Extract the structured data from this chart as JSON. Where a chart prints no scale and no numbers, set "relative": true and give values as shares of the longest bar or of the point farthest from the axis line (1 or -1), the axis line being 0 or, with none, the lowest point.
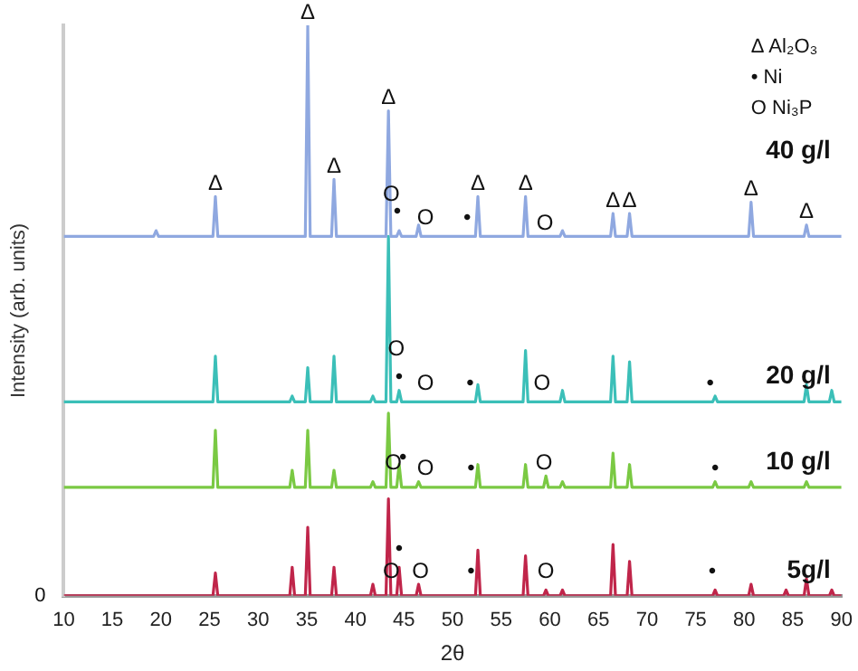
{
  "chart_data": {
    "type": "line",
    "relative": true,
    "xlabel": "2θ",
    "ylabel": "Intensity (arb. units)",
    "xlim": [
      10,
      90
    ],
    "xticks": [
      10,
      15,
      20,
      25,
      30,
      35,
      40,
      45,
      50,
      55,
      60,
      65,
      70,
      75,
      80,
      85,
      90
    ],
    "grid": false,
    "legend": false,
    "marker": "none",
    "line_style": "solid",
    "x": [
      10,
      15.45,
      15.7,
      15.95,
      19.25,
      19.5,
      19.75,
      25.35,
      25.6,
      25.85,
      33.25,
      33.5,
      33.75,
      34.85,
      35.1,
      35.35,
      37.55,
      37.8,
      38.05,
      41.55,
      41.8,
      42.05,
      43.15,
      43.4,
      43.65,
      44.25,
      44.5,
      44.75,
      46.25,
      46.5,
      46.75,
      52.35,
      52.6,
      52.85,
      57.25,
      57.5,
      57.75,
      59.35,
      59.6,
      59.85,
      61.05,
      61.3,
      61.55,
      66.25,
      66.5,
      66.75,
      67.95,
      68.2,
      68.45,
      76.75,
      77,
      77.25,
      80.45,
      80.7,
      80.95,
      84.05,
      84.3,
      84.55,
      86.15,
      86.4,
      86.65,
      88.75,
      89,
      89.25,
      90
    ],
    "series": [
      {
        "name": "40 g/l",
        "color": "#8fa8e0",
        "values": [
          0.63,
          0.63,
          0.63,
          0.63,
          0.63,
          0.64,
          0.63,
          0.63,
          0.7,
          0.63,
          0.63,
          0.63,
          0.63,
          0.63,
          1,
          0.63,
          0.63,
          0.73,
          0.63,
          0.63,
          0.63,
          0.63,
          0.63,
          0.85,
          0.63,
          0.63,
          0.64,
          0.63,
          0.63,
          0.65,
          0.63,
          0.63,
          0.7,
          0.63,
          0.63,
          0.7,
          0.63,
          0.63,
          0.63,
          0.63,
          0.63,
          0.64,
          0.63,
          0.63,
          0.67,
          0.63,
          0.63,
          0.67,
          0.63,
          0.63,
          0.63,
          0.63,
          0.63,
          0.69,
          0.63,
          0.63,
          0.63,
          0.63,
          0.63,
          0.65,
          0.63,
          0.63,
          0.63,
          0.63,
          0.63
        ]
      },
      {
        "name": "20 g/l",
        "color": "#3bbfb8",
        "values": [
          0.34,
          0.34,
          0.34,
          0.34,
          0.34,
          0.34,
          0.34,
          0.34,
          0.42,
          0.34,
          0.34,
          0.35,
          0.34,
          0.34,
          0.4,
          0.34,
          0.34,
          0.42,
          0.34,
          0.34,
          0.35,
          0.34,
          0.34,
          0.63,
          0.34,
          0.34,
          0.36,
          0.34,
          0.34,
          0.34,
          0.34,
          0.34,
          0.37,
          0.34,
          0.34,
          0.43,
          0.34,
          0.34,
          0.34,
          0.34,
          0.34,
          0.36,
          0.34,
          0.34,
          0.42,
          0.34,
          0.34,
          0.41,
          0.34,
          0.34,
          0.35,
          0.34,
          0.34,
          0.34,
          0.34,
          0.34,
          0.34,
          0.34,
          0.34,
          0.37,
          0.34,
          0.34,
          0.36,
          0.34,
          0.34
        ]
      },
      {
        "name": "10 g/l",
        "color": "#7ac943",
        "values": [
          0.19,
          0.19,
          0.19,
          0.19,
          0.19,
          0.19,
          0.19,
          0.19,
          0.29,
          0.19,
          0.19,
          0.22,
          0.19,
          0.19,
          0.29,
          0.19,
          0.19,
          0.22,
          0.19,
          0.19,
          0.2,
          0.19,
          0.19,
          0.32,
          0.19,
          0.19,
          0.23,
          0.19,
          0.19,
          0.2,
          0.19,
          0.19,
          0.23,
          0.19,
          0.19,
          0.23,
          0.19,
          0.19,
          0.21,
          0.19,
          0.19,
          0.2,
          0.19,
          0.19,
          0.25,
          0.19,
          0.19,
          0.23,
          0.19,
          0.19,
          0.2,
          0.19,
          0.19,
          0.2,
          0.19,
          0.19,
          0.19,
          0.19,
          0.19,
          0.2,
          0.19,
          0.19,
          0.19,
          0.19,
          0.19
        ]
      },
      {
        "name": "5g/l",
        "color": "#c0254a",
        "values": [
          0,
          0,
          0,
          0,
          0,
          0,
          0,
          0,
          0.04,
          0,
          0,
          0.05,
          0,
          0,
          0.12,
          0,
          0,
          0.05,
          0,
          0,
          0.02,
          0,
          0,
          0.17,
          0,
          0,
          0.05,
          0,
          0,
          0.02,
          0,
          0,
          0.08,
          0,
          0,
          0.07,
          0,
          0,
          0.01,
          0,
          0,
          0.01,
          0,
          0,
          0.09,
          0,
          0,
          0.06,
          0,
          0,
          0.01,
          0,
          0,
          0.02,
          0,
          0,
          0.01,
          0,
          0,
          0.03,
          0,
          0,
          0.01,
          0,
          0
        ]
      }
    ],
    "annotations": [
      "Δ Al₂O₃",
      "• Ni",
      "O Ni₃P",
      {
        "text": "0",
        "x": 10,
        "y": 0
      },
      {
        "text": "Δ",
        "x": 25.6,
        "y": 0.7
      },
      {
        "text": "Δ",
        "x": 35.1,
        "y": 1
      },
      {
        "text": "Δ",
        "x": 37.8,
        "y": 0.73
      },
      {
        "text": "Δ",
        "x": 43.4,
        "y": 0.85
      },
      {
        "text": "Δ",
        "x": 52.6,
        "y": 0.7
      },
      {
        "text": "Δ",
        "x": 57.5,
        "y": 0.7
      },
      {
        "text": "Δ",
        "x": 66.5,
        "y": 0.67
      },
      {
        "text": "Δ",
        "x": 68.2,
        "y": 0.67
      },
      {
        "text": "Δ",
        "x": 80.7,
        "y": 0.69
      },
      {
        "text": "Δ",
        "x": 86.4,
        "y": 0.65
      },
      {
        "text": "O",
        "x": 43.7,
        "y": 0.68
      },
      {
        "text": "•",
        "x": 44.3,
        "y": 0.65
      },
      {
        "text": "O",
        "x": 47.2,
        "y": 0.64
      },
      {
        "text": "•",
        "x": 51.5,
        "y": 0.64
      },
      {
        "text": "O",
        "x": 59.5,
        "y": 0.63
      },
      {
        "text": "O",
        "x": 44.2,
        "y": 0.41
      },
      {
        "text": "•",
        "x": 44.5,
        "y": 0.36
      },
      {
        "text": "O",
        "x": 47.2,
        "y": 0.35
      },
      {
        "text": "•",
        "x": 51.8,
        "y": 0.35
      },
      {
        "text": "O",
        "x": 59.2,
        "y": 0.35
      },
      {
        "text": "•",
        "x": 76.5,
        "y": 0.35
      },
      {
        "text": "O",
        "x": 43.9,
        "y": 0.21
      },
      {
        "text": "•",
        "x": 44.9,
        "y": 0.22
      },
      {
        "text": "O",
        "x": 47.2,
        "y": 0.2
      },
      {
        "text": "•",
        "x": 51.9,
        "y": 0.2
      },
      {
        "text": "O",
        "x": 59.4,
        "y": 0.21
      },
      {
        "text": "•",
        "x": 77,
        "y": 0.2
      },
      {
        "text": "•",
        "x": 44.5,
        "y": 0.06
      },
      {
        "text": "O",
        "x": 43.7,
        "y": 0.02
      },
      {
        "text": "O",
        "x": 46.7,
        "y": 0.02
      },
      {
        "text": "•",
        "x": 51.9,
        "y": 0.02
      },
      {
        "text": "O",
        "x": 59.6,
        "y": 0.02
      },
      {
        "text": "•",
        "x": 76.7,
        "y": 0.02
      }
    ]
  }
}
